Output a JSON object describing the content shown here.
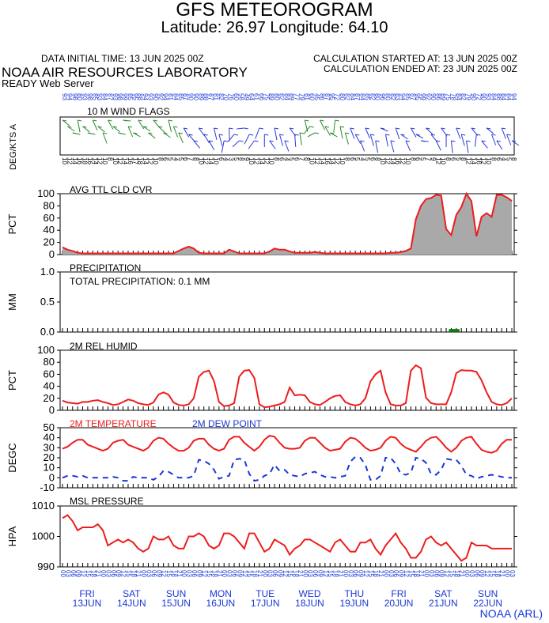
{
  "header": {
    "title": "GFS METEOROGRAM",
    "subtitle": "Latitude: 26.97 Longitude:  64.10",
    "initial_time": "DATA INITIAL TIME: 13 JUN 2025 00Z",
    "calc_started": "CALCULATION STARTED AT: 13 JUN 2025 00Z",
    "calc_ended": "CALCULATION ENDED AT: 23 JUN 2025 00Z",
    "lab": "NOAA AIR RESOURCES LABORATORY",
    "server": "READY Web Server",
    "credit": "NOAA (ARL)"
  },
  "colors": {
    "temperature": "#ee1c1c",
    "dewpoint": "#1a37d6",
    "humidity": "#ee1c1c",
    "pressure": "#ee1c1c",
    "cloud_line": "#ee1c1c",
    "cloud_fill": "#a9a9a9",
    "precip_bar": "#0a7a0a",
    "wind_green": "#2a8a2a",
    "wind_blue": "#2a3ad6",
    "axis_blue": "#1a37d6"
  },
  "chart_data": [
    {
      "type": "area",
      "panel": "cloud",
      "title": "AVG TTL CLD CVR",
      "ylabel": "PCT",
      "ylim": [
        0,
        100
      ],
      "yticks": [
        0,
        20,
        40,
        60,
        80,
        100
      ],
      "values": [
        12,
        8,
        6,
        3,
        2,
        2,
        2,
        2,
        2,
        2,
        2,
        2,
        2,
        2,
        2,
        2,
        2,
        2,
        2,
        2,
        2,
        2,
        2,
        6,
        10,
        13,
        10,
        3,
        2,
        2,
        2,
        2,
        2,
        8,
        5,
        2,
        2,
        2,
        2,
        2,
        2,
        5,
        10,
        8,
        8,
        5,
        3,
        3,
        3,
        3,
        4,
        3,
        2,
        2,
        2,
        2,
        2,
        2,
        2,
        2,
        2,
        2,
        2,
        2,
        2,
        3,
        3,
        4,
        6,
        10,
        58,
        80,
        91,
        93,
        98,
        97,
        42,
        32,
        65,
        78,
        100,
        88,
        30,
        62,
        68,
        62,
        98,
        98,
        94,
        88
      ]
    },
    {
      "type": "bar",
      "panel": "precip",
      "title": "PRECIPITATION",
      "annotation": "TOTAL PRECIPITATION:   0.1 MM",
      "ylabel": "MM",
      "ylim": [
        0,
        1.0
      ],
      "yticks": [
        0.0,
        0.5,
        1.0
      ],
      "ytick_labels": [
        "0.0",
        "0.5",
        "1.0"
      ],
      "values": [
        0,
        0,
        0,
        0,
        0,
        0,
        0,
        0,
        0,
        0,
        0,
        0,
        0,
        0,
        0,
        0,
        0,
        0,
        0,
        0,
        0,
        0,
        0,
        0,
        0,
        0,
        0,
        0,
        0,
        0,
        0,
        0,
        0,
        0,
        0,
        0,
        0,
        0,
        0,
        0,
        0,
        0,
        0,
        0,
        0,
        0,
        0,
        0,
        0,
        0,
        0,
        0,
        0,
        0,
        0,
        0,
        0,
        0,
        0,
        0,
        0,
        0,
        0,
        0,
        0,
        0,
        0,
        0,
        0,
        0,
        0,
        0,
        0,
        0,
        0,
        0,
        0,
        0.05,
        0.05,
        0,
        0,
        0,
        0,
        0,
        0,
        0,
        0,
        0,
        0,
        0
      ]
    },
    {
      "type": "line",
      "panel": "humidity",
      "title": "2M REL HUMID",
      "ylabel": "PCT",
      "ylim": [
        0,
        100
      ],
      "yticks": [
        0,
        20,
        40,
        60,
        80,
        100
      ],
      "values": [
        16,
        13,
        12,
        11,
        14,
        14,
        16,
        17,
        14,
        12,
        9,
        10,
        14,
        18,
        16,
        12,
        10,
        9,
        13,
        26,
        30,
        26,
        13,
        9,
        8,
        10,
        20,
        56,
        64,
        66,
        49,
        14,
        7,
        8,
        12,
        56,
        66,
        67,
        54,
        10,
        5,
        6,
        8,
        10,
        14,
        38,
        25,
        26,
        25,
        14,
        10,
        9,
        14,
        20,
        24,
        25,
        14,
        10,
        8,
        10,
        20,
        48,
        60,
        66,
        30,
        10,
        8,
        8,
        12,
        66,
        75,
        70,
        21,
        12,
        10,
        10,
        10,
        30,
        62,
        67,
        66,
        66,
        64,
        50,
        30,
        14,
        10,
        9,
        12,
        20
      ]
    },
    {
      "type": "line",
      "panel": "temp",
      "title": "2M TEMPERATURE",
      "title2": "2M   DEW POINT",
      "ylabel": "DEGC",
      "ylim": [
        -10,
        50
      ],
      "yticks": [
        -10,
        0,
        10,
        20,
        30,
        40,
        50
      ],
      "series": [
        {
          "name": "2M TEMPERATURE",
          "values": [
            29,
            31,
            35,
            38,
            38,
            33,
            31,
            29,
            27,
            29,
            35,
            37,
            38,
            33,
            31,
            29,
            27,
            30,
            37,
            40,
            39,
            34,
            30,
            27,
            27,
            30,
            37,
            39,
            39,
            33,
            29,
            27,
            29,
            38,
            41,
            41,
            35,
            31,
            27,
            31,
            38,
            42,
            41,
            35,
            30,
            29,
            29,
            30,
            37,
            40,
            40,
            35,
            30,
            27,
            28,
            29,
            36,
            40,
            39,
            35,
            30,
            27,
            28,
            30,
            37,
            41,
            40,
            34,
            30,
            28,
            26,
            31,
            37,
            40,
            41,
            36,
            30,
            26,
            30,
            37,
            40,
            41,
            34,
            28,
            26,
            25,
            27,
            34,
            38,
            38
          ]
        },
        {
          "name": "2M   DEW POINT",
          "values": [
            0,
            2,
            2,
            1,
            2,
            0,
            0,
            0,
            0,
            0,
            1,
            0,
            -3,
            -3,
            1,
            0,
            0,
            0,
            -2,
            1,
            7,
            6,
            3,
            0,
            0,
            0,
            2,
            18,
            17,
            14,
            8,
            -1,
            1,
            2,
            18,
            19,
            18,
            4,
            -3,
            -2,
            2,
            4,
            13,
            7,
            8,
            3,
            2,
            1,
            4,
            5,
            6,
            3,
            1,
            1,
            0,
            1,
            2,
            16,
            21,
            20,
            13,
            -2,
            -2,
            2,
            20,
            20,
            14,
            4,
            3,
            5,
            20,
            19,
            15,
            4,
            3,
            8,
            19,
            18,
            18,
            12,
            3,
            2,
            -1,
            1,
            2,
            3,
            2,
            1,
            0,
            0
          ]
        }
      ]
    },
    {
      "type": "line",
      "panel": "pressure",
      "title": "MSL PRESSURE",
      "ylabel": "HPA",
      "ylim": [
        990,
        1010
      ],
      "yticks": [
        990,
        1000,
        1010
      ],
      "values": [
        1006,
        1007,
        1005,
        1002,
        1003,
        1003,
        1003,
        1004,
        1002,
        997,
        998,
        999,
        998,
        999,
        998,
        996,
        995,
        996,
        1000,
        999,
        999,
        1000,
        997,
        996,
        996,
        1000,
        1000,
        1001,
        1000,
        997,
        996,
        997,
        1001,
        1001,
        1000,
        998,
        996,
        1001,
        1001,
        998,
        995,
        996,
        999,
        998,
        997,
        994,
        996,
        997,
        999,
        999,
        998,
        997,
        996,
        995,
        998,
        999,
        997,
        995,
        995,
        998,
        998,
        999,
        996,
        994,
        997,
        999,
        1001,
        998,
        996,
        993,
        993,
        995,
        999,
        1000,
        998,
        997,
        998,
        996,
        994,
        992,
        993,
        998,
        997,
        997,
        997,
        996,
        996,
        996,
        996,
        996
      ]
    }
  ],
  "wind": {
    "title": "10 M  WIND FLAGS",
    "ylabel": "DEG/KTS  A",
    "top_labels": [
      "93",
      "94",
      "98",
      "80",
      "93",
      "98",
      "85",
      "93",
      "84",
      "87",
      "93",
      "98",
      "99",
      "85",
      "95",
      "88",
      "94",
      "93",
      "90",
      "92",
      "94",
      "81",
      "84",
      "85",
      "87",
      "90",
      "90",
      "89",
      "88",
      "87",
      "81",
      "82",
      "70",
      "76",
      "60",
      "58",
      "49",
      "64",
      "61",
      "66",
      "75",
      "89",
      "80",
      "82",
      "84",
      "89",
      "77",
      "79",
      "81",
      "60",
      "45",
      "86",
      "87",
      "95",
      "72",
      "80",
      "82",
      "84",
      "87",
      "84",
      "85",
      "82",
      "80",
      "96",
      "80",
      "82",
      "83",
      "94",
      "85",
      "87",
      "95",
      "99",
      "92",
      "90",
      "86",
      "89",
      "75",
      "78",
      "84",
      "82",
      "79",
      "90",
      "72",
      "90",
      "93",
      "84",
      "88",
      "84",
      "84",
      "94"
    ],
    "bottom_labels": [
      "10",
      "12",
      "14",
      "16",
      "18",
      "16",
      "14",
      "12",
      "10",
      "8",
      "10",
      "12",
      "14",
      "16",
      "17",
      "18",
      "14",
      "12",
      "10",
      "8",
      "6",
      "5",
      "4",
      "5",
      "6",
      "7",
      "8",
      "10",
      "12",
      "14",
      "10",
      "6",
      "4",
      "3",
      "5",
      "8",
      "9",
      "10",
      "12",
      "14",
      "12",
      "10",
      "8",
      "6",
      "4",
      "5",
      "6",
      "7",
      "8",
      "10",
      "12",
      "14",
      "16",
      "14",
      "12",
      "10",
      "8",
      "6",
      "5",
      "4",
      "5",
      "6",
      "8",
      "10",
      "12",
      "14",
      "16",
      "12",
      "10",
      "8",
      "6",
      "5",
      "7",
      "9",
      "12",
      "10",
      "8",
      "6",
      "5",
      "8",
      "12",
      "14",
      "16",
      "12",
      "10",
      "8",
      "6",
      "4",
      "5",
      "8"
    ]
  },
  "xaxis": {
    "hour_labels": [
      "00",
      "03",
      "06",
      "09",
      "12",
      "15",
      "18",
      "21",
      "00",
      "03",
      "06",
      "09",
      "12",
      "15",
      "18",
      "21",
      "00",
      "03",
      "06",
      "09",
      "12",
      "15",
      "18",
      "21",
      "00",
      "03",
      "06",
      "09",
      "12",
      "15",
      "18",
      "21",
      "00",
      "03",
      "06",
      "09",
      "12",
      "15",
      "18",
      "21",
      "00",
      "03",
      "06",
      "09",
      "12",
      "15",
      "18",
      "21",
      "00",
      "03",
      "06",
      "09",
      "12",
      "15",
      "18",
      "21",
      "00",
      "03",
      "06",
      "09",
      "12",
      "15",
      "18",
      "21",
      "00",
      "03",
      "06",
      "09",
      "12",
      "15",
      "18",
      "21",
      "00",
      "03",
      "06",
      "09",
      "12",
      "15",
      "18",
      "21",
      "00",
      "03",
      "06",
      "09",
      "12",
      "15",
      "18",
      "21",
      "00",
      "03"
    ],
    "days": [
      {
        "dow": "FRI",
        "date": "13JUN"
      },
      {
        "dow": "SAT",
        "date": "14JUN"
      },
      {
        "dow": "SUN",
        "date": "15JUN"
      },
      {
        "dow": "MON",
        "date": "16JUN"
      },
      {
        "dow": "TUE",
        "date": "17JUN"
      },
      {
        "dow": "WED",
        "date": "18JUN"
      },
      {
        "dow": "THU",
        "date": "19JUN"
      },
      {
        "dow": "FRI",
        "date": "20JUN"
      },
      {
        "dow": "SAT",
        "date": "21JUN"
      },
      {
        "dow": "SUN",
        "date": "22JUN"
      }
    ]
  }
}
